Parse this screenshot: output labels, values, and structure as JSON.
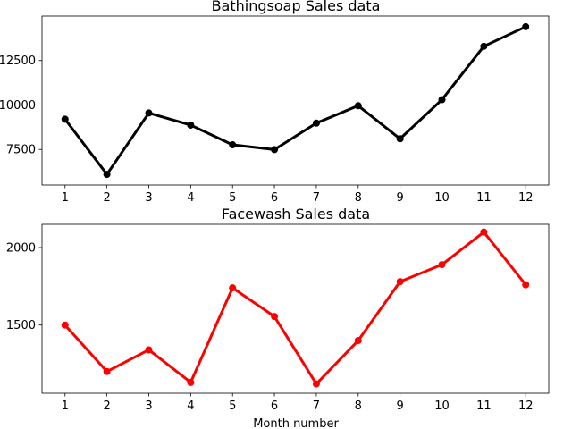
{
  "chart_data": [
    {
      "type": "line",
      "title": "Bathingsoap Sales data",
      "xlabel": "",
      "ylabel": "",
      "x": [
        1,
        2,
        3,
        4,
        5,
        6,
        7,
        8,
        9,
        10,
        11,
        12
      ],
      "xlim": [
        0.45,
        12.55
      ],
      "ylim": [
        5500,
        15000
      ],
      "yticks": [
        7500,
        10000,
        12500
      ],
      "ytick_labels": [
        "7500",
        "10000",
        "12500"
      ],
      "series": [
        {
          "values": [
            9200,
            6100,
            9550,
            8870,
            7760,
            7490,
            8980,
            9960,
            8100,
            10300,
            13300,
            14400
          ],
          "color": "#000000"
        }
      ],
      "grid": false
    },
    {
      "type": "line",
      "title": "Facewash Sales data",
      "xlabel": "Month number",
      "ylabel": "",
      "x": [
        1,
        2,
        3,
        4,
        5,
        6,
        7,
        8,
        9,
        10,
        11,
        12
      ],
      "xlim": [
        0.45,
        12.55
      ],
      "ylim": [
        1060,
        2150
      ],
      "yticks": [
        1500,
        2000
      ],
      "ytick_labels": [
        "1500",
        "2000"
      ],
      "series": [
        {
          "values": [
            1500,
            1200,
            1340,
            1130,
            1740,
            1555,
            1120,
            1400,
            1780,
            1890,
            2100,
            1760
          ],
          "color": "#ff0000"
        }
      ],
      "grid": false
    }
  ]
}
